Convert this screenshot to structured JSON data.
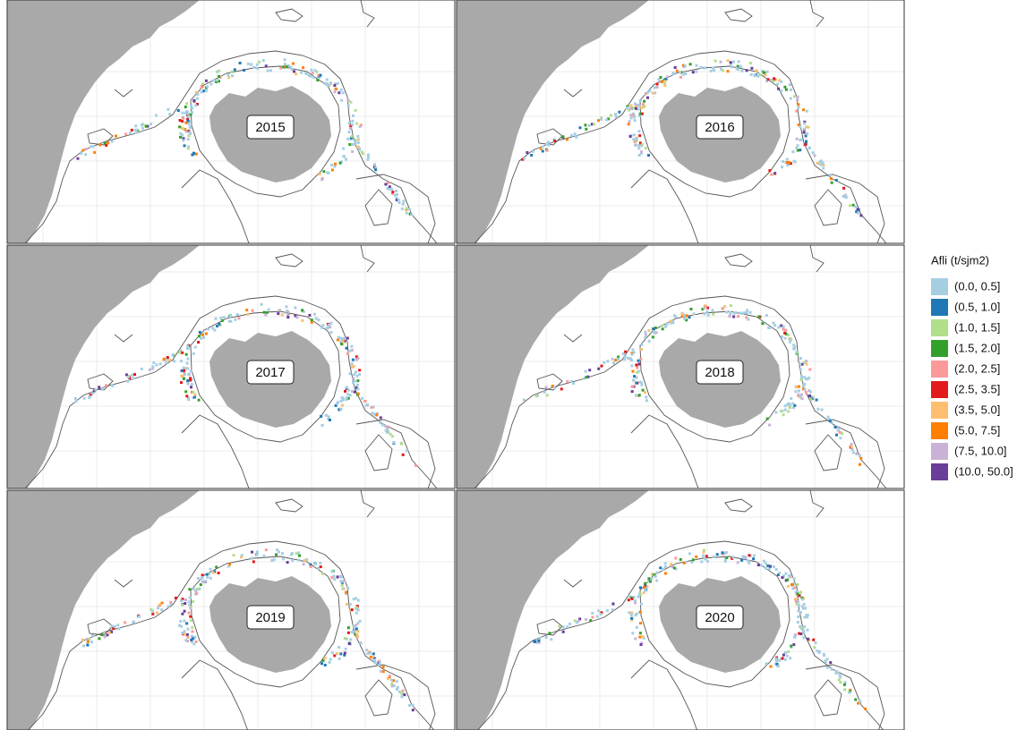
{
  "panels": [
    {
      "label": "2015"
    },
    {
      "label": "2016"
    },
    {
      "label": "2017"
    },
    {
      "label": "2018"
    },
    {
      "label": "2019"
    },
    {
      "label": "2020"
    }
  ],
  "legend": {
    "title": "Afli (t/sjm2)",
    "items": [
      {
        "label": "(0.0, 0.5]",
        "color": "#a6cee3"
      },
      {
        "label": "(0.5, 1.0]",
        "color": "#1f78b4"
      },
      {
        "label": "(1.0, 1.5]",
        "color": "#b2df8a"
      },
      {
        "label": "(1.5, 2.0]",
        "color": "#33a02c"
      },
      {
        "label": "(2.0, 2.5]",
        "color": "#fb9a99"
      },
      {
        "label": "(2.5, 3.5]",
        "color": "#e31a1c"
      },
      {
        "label": "(3.5, 5.0]",
        "color": "#fdbf6f"
      },
      {
        "label": "(5.0, 7.5]",
        "color": "#ff7f00"
      },
      {
        "label": "(7.5, 10.0]",
        "color": "#cab2d6"
      },
      {
        "label": "(10.0, 50.0]",
        "color": "#6a3d9a"
      }
    ]
  }
}
